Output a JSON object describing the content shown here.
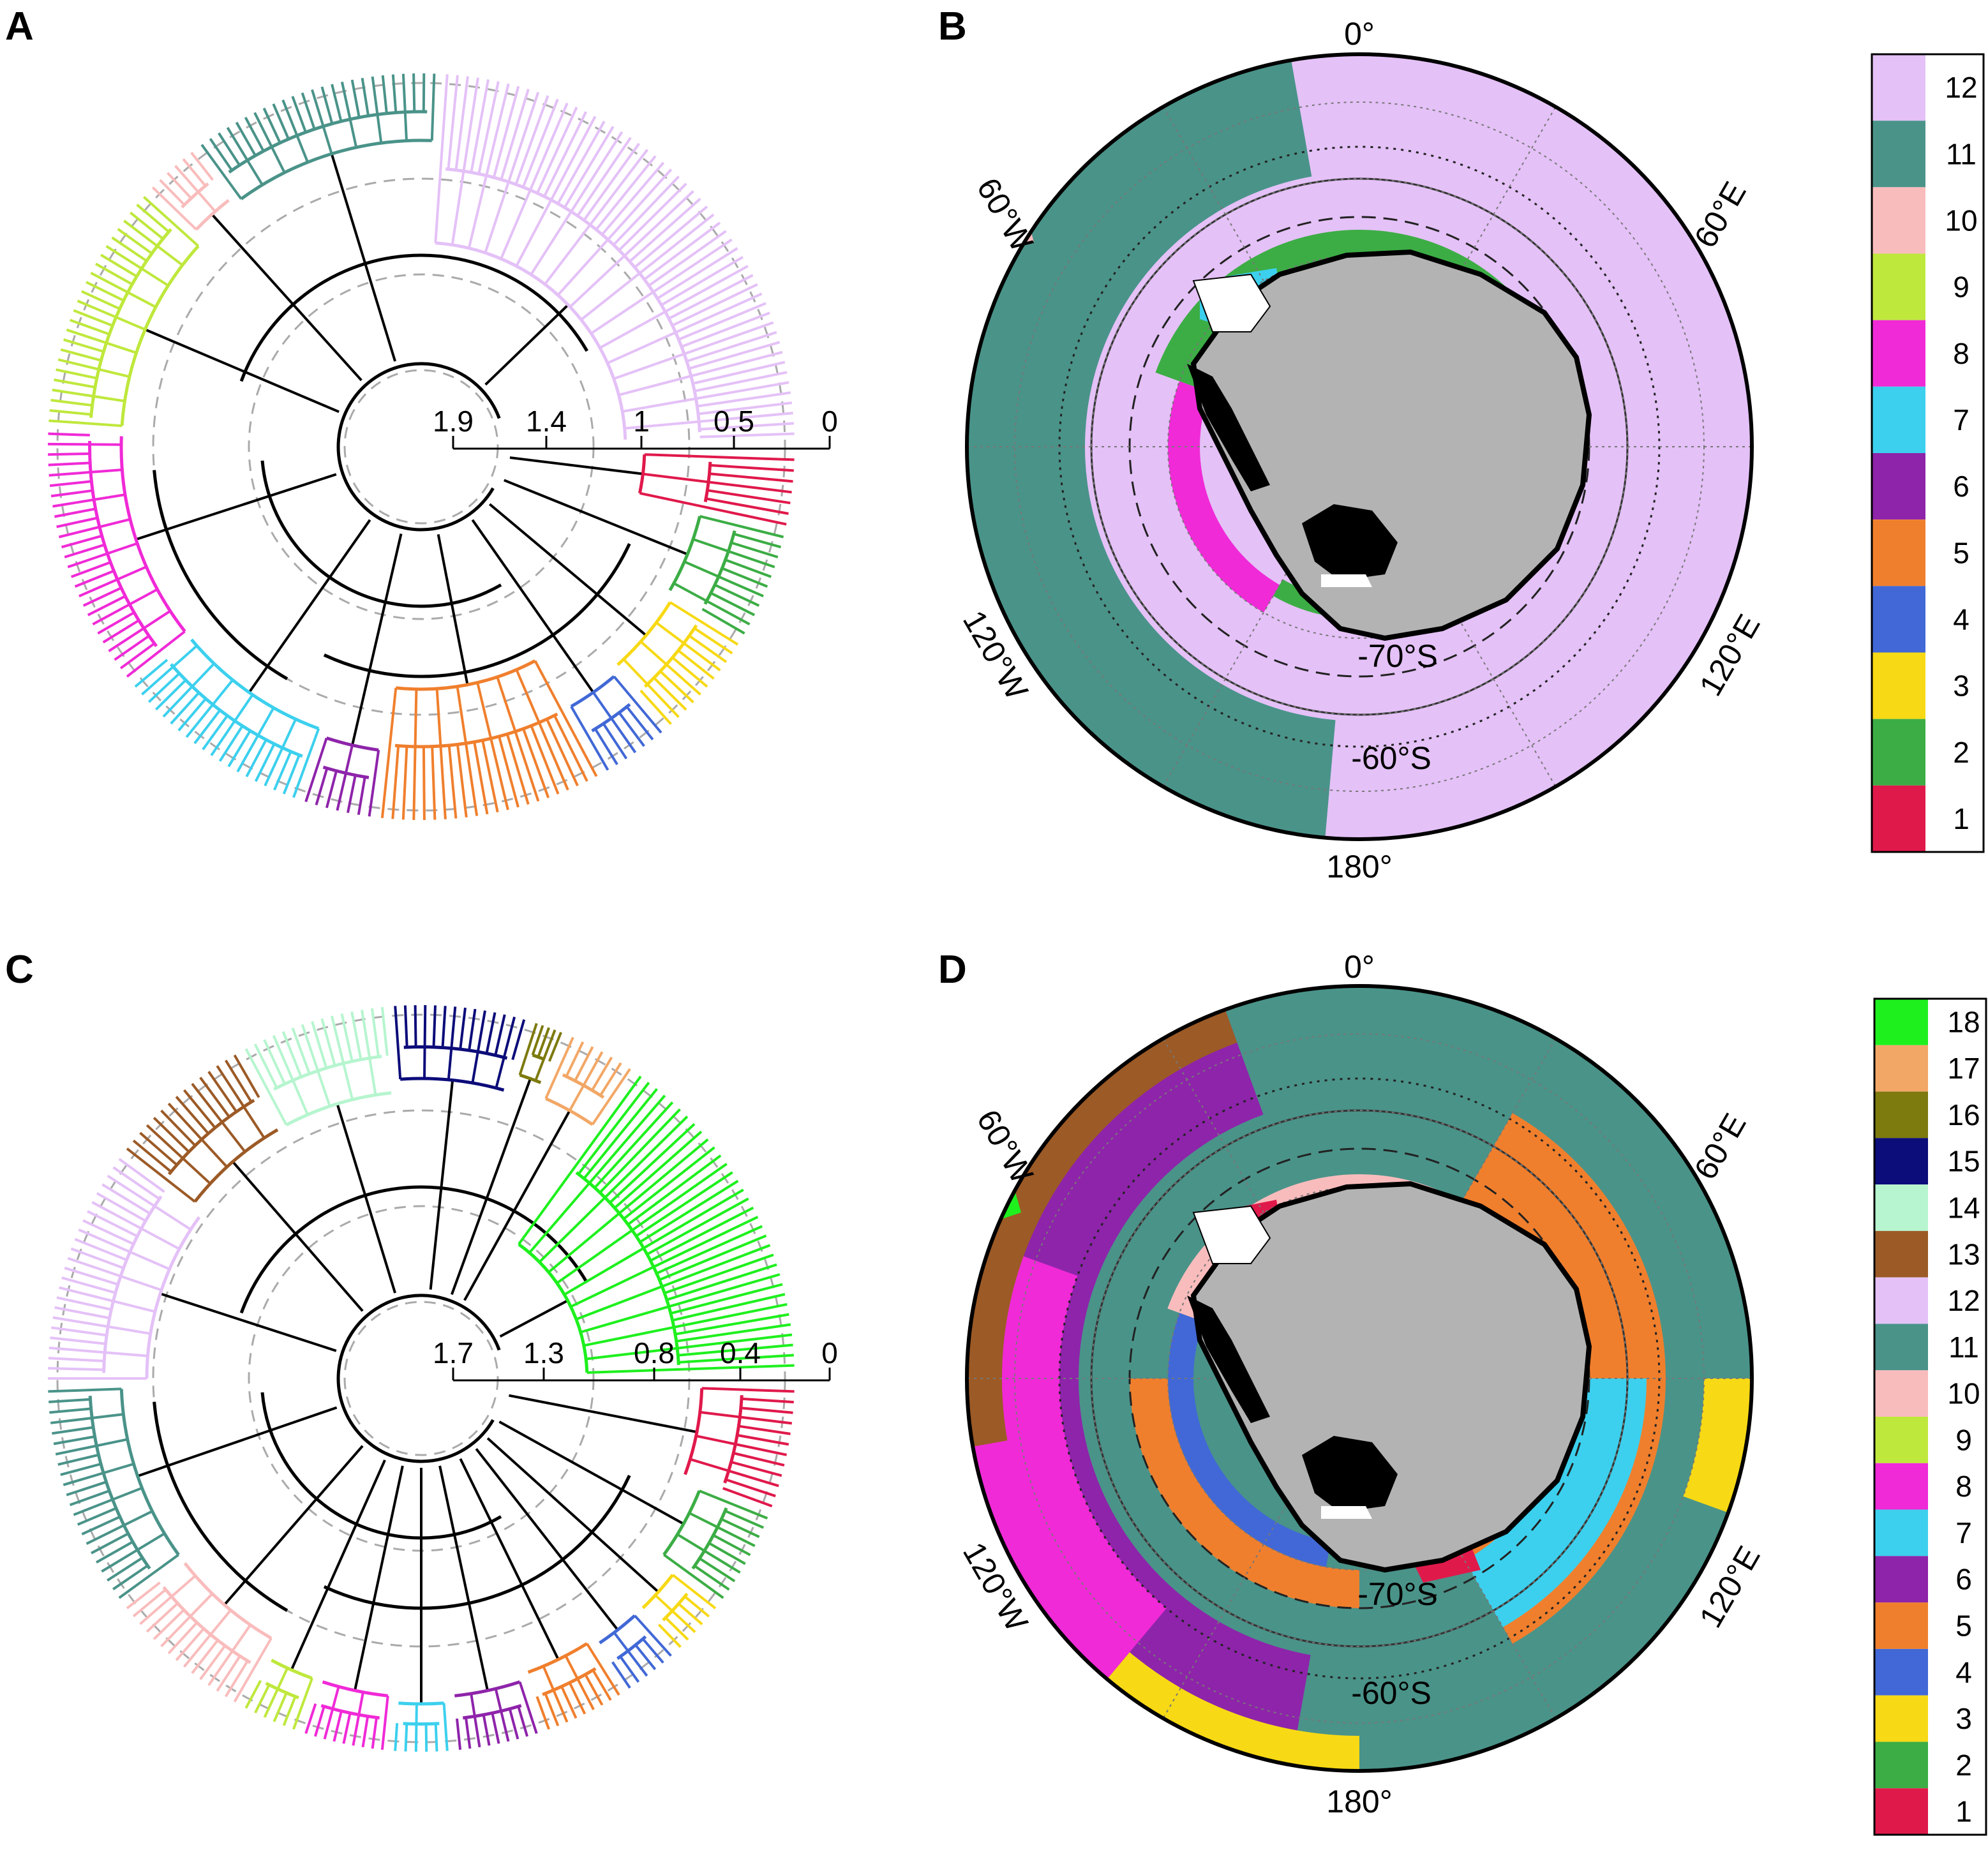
{
  "colors": {
    "A": {
      "1": "#e0194b",
      "2": "#3cad45",
      "3": "#f7d915",
      "4": "#4168d6",
      "5": "#f07f2d",
      "6": "#8e24aa",
      "7": "#3cd0ee",
      "8": "#f02ad7",
      "9": "#bfe83c",
      "10": "#f9bcbc",
      "11": "#4a9389",
      "12": "#e4c1f7"
    },
    "C": {
      "1": "#e0194b",
      "2": "#3cad45",
      "3": "#f7d915",
      "4": "#4168d6",
      "5": "#f07f2d",
      "6": "#8e24aa",
      "7": "#3cd0ee",
      "8": "#f02ad7",
      "9": "#bfe83c",
      "10": "#f9bcbc",
      "11": "#4a9389",
      "12": "#e4c1f7",
      "13": "#9c5a26",
      "14": "#b6f5cf",
      "15": "#0c0c7a",
      "16": "#7d7a0e",
      "17": "#f2a766",
      "18": "#1ef01e"
    },
    "land": "#b3b3b3",
    "ice_shelf": "#ffffff",
    "ice_black": "#000000"
  },
  "panel_a": {
    "letter": "A",
    "scale_labels": [
      "1.9",
      "1.4",
      "1",
      "0.5",
      "0"
    ],
    "cluster_order": [
      1,
      2,
      3,
      4,
      5,
      6,
      7,
      8,
      9,
      10,
      11,
      12
    ]
  },
  "panel_b": {
    "letter": "B",
    "labels": {
      "top": "0°",
      "bottom": "180°",
      "ul": "60°W",
      "ur": "60°E",
      "ll": "120°W",
      "lr": "120°E",
      "lat70": "-70°S",
      "lat60": "-60°S"
    },
    "legend": [
      "12",
      "11",
      "10",
      "9",
      "8",
      "7",
      "6",
      "5",
      "4",
      "3",
      "2",
      "1"
    ]
  },
  "panel_c": {
    "letter": "C",
    "scale_labels": [
      "1.7",
      "1.3",
      "0.8",
      "0.4",
      "0"
    ],
    "cluster_order": [
      1,
      2,
      3,
      4,
      5,
      6,
      7,
      8,
      9,
      10,
      11,
      12,
      13,
      14,
      15,
      16,
      17,
      18
    ]
  },
  "panel_d": {
    "letter": "D",
    "labels": {
      "top": "0°",
      "bottom": "180°",
      "ul": "60°W",
      "ur": "60°E",
      "ll": "120°W",
      "lr": "120°E",
      "lat70": "-70°S",
      "lat60": "-60°S"
    },
    "legend": [
      "18",
      "17",
      "16",
      "15",
      "14",
      "13",
      "12",
      "11",
      "10",
      "9",
      "8",
      "7",
      "6",
      "5",
      "4",
      "3",
      "2",
      "1"
    ]
  }
}
